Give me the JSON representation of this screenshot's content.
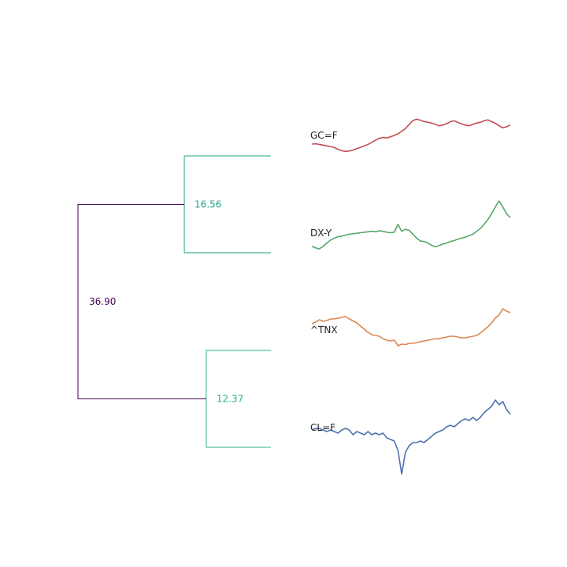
{
  "chart_data": {
    "type": "line",
    "title": "",
    "xlabel": "",
    "ylabel": "",
    "grid": false,
    "dendrogram": {
      "orientation": "left-to-right",
      "root": {
        "height": 36.9,
        "label": "36.90",
        "color": "#440154",
        "children": [
          {
            "height": 16.56,
            "label": "16.56",
            "color": "#21a38a",
            "children": [
              "GC=F",
              "DX-Y"
            ]
          },
          {
            "height": 12.37,
            "label": "12.37",
            "color": "#2fb47c",
            "children": [
              "^TNX",
              "CL=F"
            ]
          }
        ]
      },
      "distance_axis_max": 40
    },
    "series": [
      {
        "name": "GC=F",
        "color": "#c44e52",
        "values": [
          0.25,
          0.26,
          0.24,
          0.22,
          0.2,
          0.18,
          0.15,
          0.1,
          0.06,
          0.04,
          0.05,
          0.08,
          0.12,
          0.16,
          0.2,
          0.24,
          0.3,
          0.36,
          0.42,
          0.44,
          0.43,
          0.46,
          0.5,
          0.55,
          0.62,
          0.7,
          0.82,
          0.93,
          0.97,
          0.94,
          0.9,
          0.88,
          0.86,
          0.82,
          0.78,
          0.8,
          0.84,
          0.9,
          0.92,
          0.88,
          0.83,
          0.8,
          0.78,
          0.82,
          0.86,
          0.88,
          0.92,
          0.95,
          0.9,
          0.85,
          0.78,
          0.72,
          0.75,
          0.8
        ]
      },
      {
        "name": "DX-Y",
        "color": "#55a868",
        "values": [
          0.05,
          0.02,
          0.0,
          0.05,
          0.12,
          0.18,
          0.22,
          0.25,
          0.26,
          0.28,
          0.3,
          0.31,
          0.32,
          0.33,
          0.34,
          0.35,
          0.36,
          0.35,
          0.37,
          0.36,
          0.34,
          0.33,
          0.34,
          0.5,
          0.36,
          0.4,
          0.38,
          0.3,
          0.22,
          0.16,
          0.15,
          0.12,
          0.07,
          0.04,
          0.07,
          0.1,
          0.12,
          0.15,
          0.17,
          0.2,
          0.22,
          0.24,
          0.27,
          0.3,
          0.36,
          0.42,
          0.5,
          0.6,
          0.72,
          0.86,
          0.98,
          0.86,
          0.72,
          0.64
        ]
      },
      {
        "name": "^TNX",
        "color": "#dd8452",
        "values": [
          0.58,
          0.62,
          0.68,
          0.64,
          0.66,
          0.7,
          0.7,
          0.72,
          0.74,
          0.76,
          0.7,
          0.65,
          0.6,
          0.52,
          0.44,
          0.36,
          0.3,
          0.28,
          0.26,
          0.2,
          0.16,
          0.14,
          0.16,
          0.02,
          0.06,
          0.05,
          0.08,
          0.08,
          0.1,
          0.12,
          0.14,
          0.16,
          0.18,
          0.2,
          0.2,
          0.22,
          0.24,
          0.26,
          0.26,
          0.24,
          0.22,
          0.22,
          0.24,
          0.26,
          0.28,
          0.34,
          0.42,
          0.5,
          0.6,
          0.72,
          0.8,
          0.96,
          0.9,
          0.86
        ]
      },
      {
        "name": "CL=F",
        "color": "#4c72b0",
        "values": [
          0.6,
          0.62,
          0.62,
          0.6,
          0.58,
          0.6,
          0.58,
          0.56,
          0.6,
          0.62,
          0.6,
          0.54,
          0.58,
          0.56,
          0.54,
          0.58,
          0.54,
          0.56,
          0.54,
          0.56,
          0.5,
          0.48,
          0.46,
          0.34,
          0.04,
          0.32,
          0.4,
          0.44,
          0.44,
          0.46,
          0.44,
          0.48,
          0.52,
          0.56,
          0.58,
          0.6,
          0.64,
          0.66,
          0.64,
          0.68,
          0.72,
          0.74,
          0.72,
          0.76,
          0.72,
          0.76,
          0.82,
          0.86,
          0.9,
          0.98,
          0.92,
          0.96,
          0.86,
          0.8
        ]
      }
    ]
  }
}
